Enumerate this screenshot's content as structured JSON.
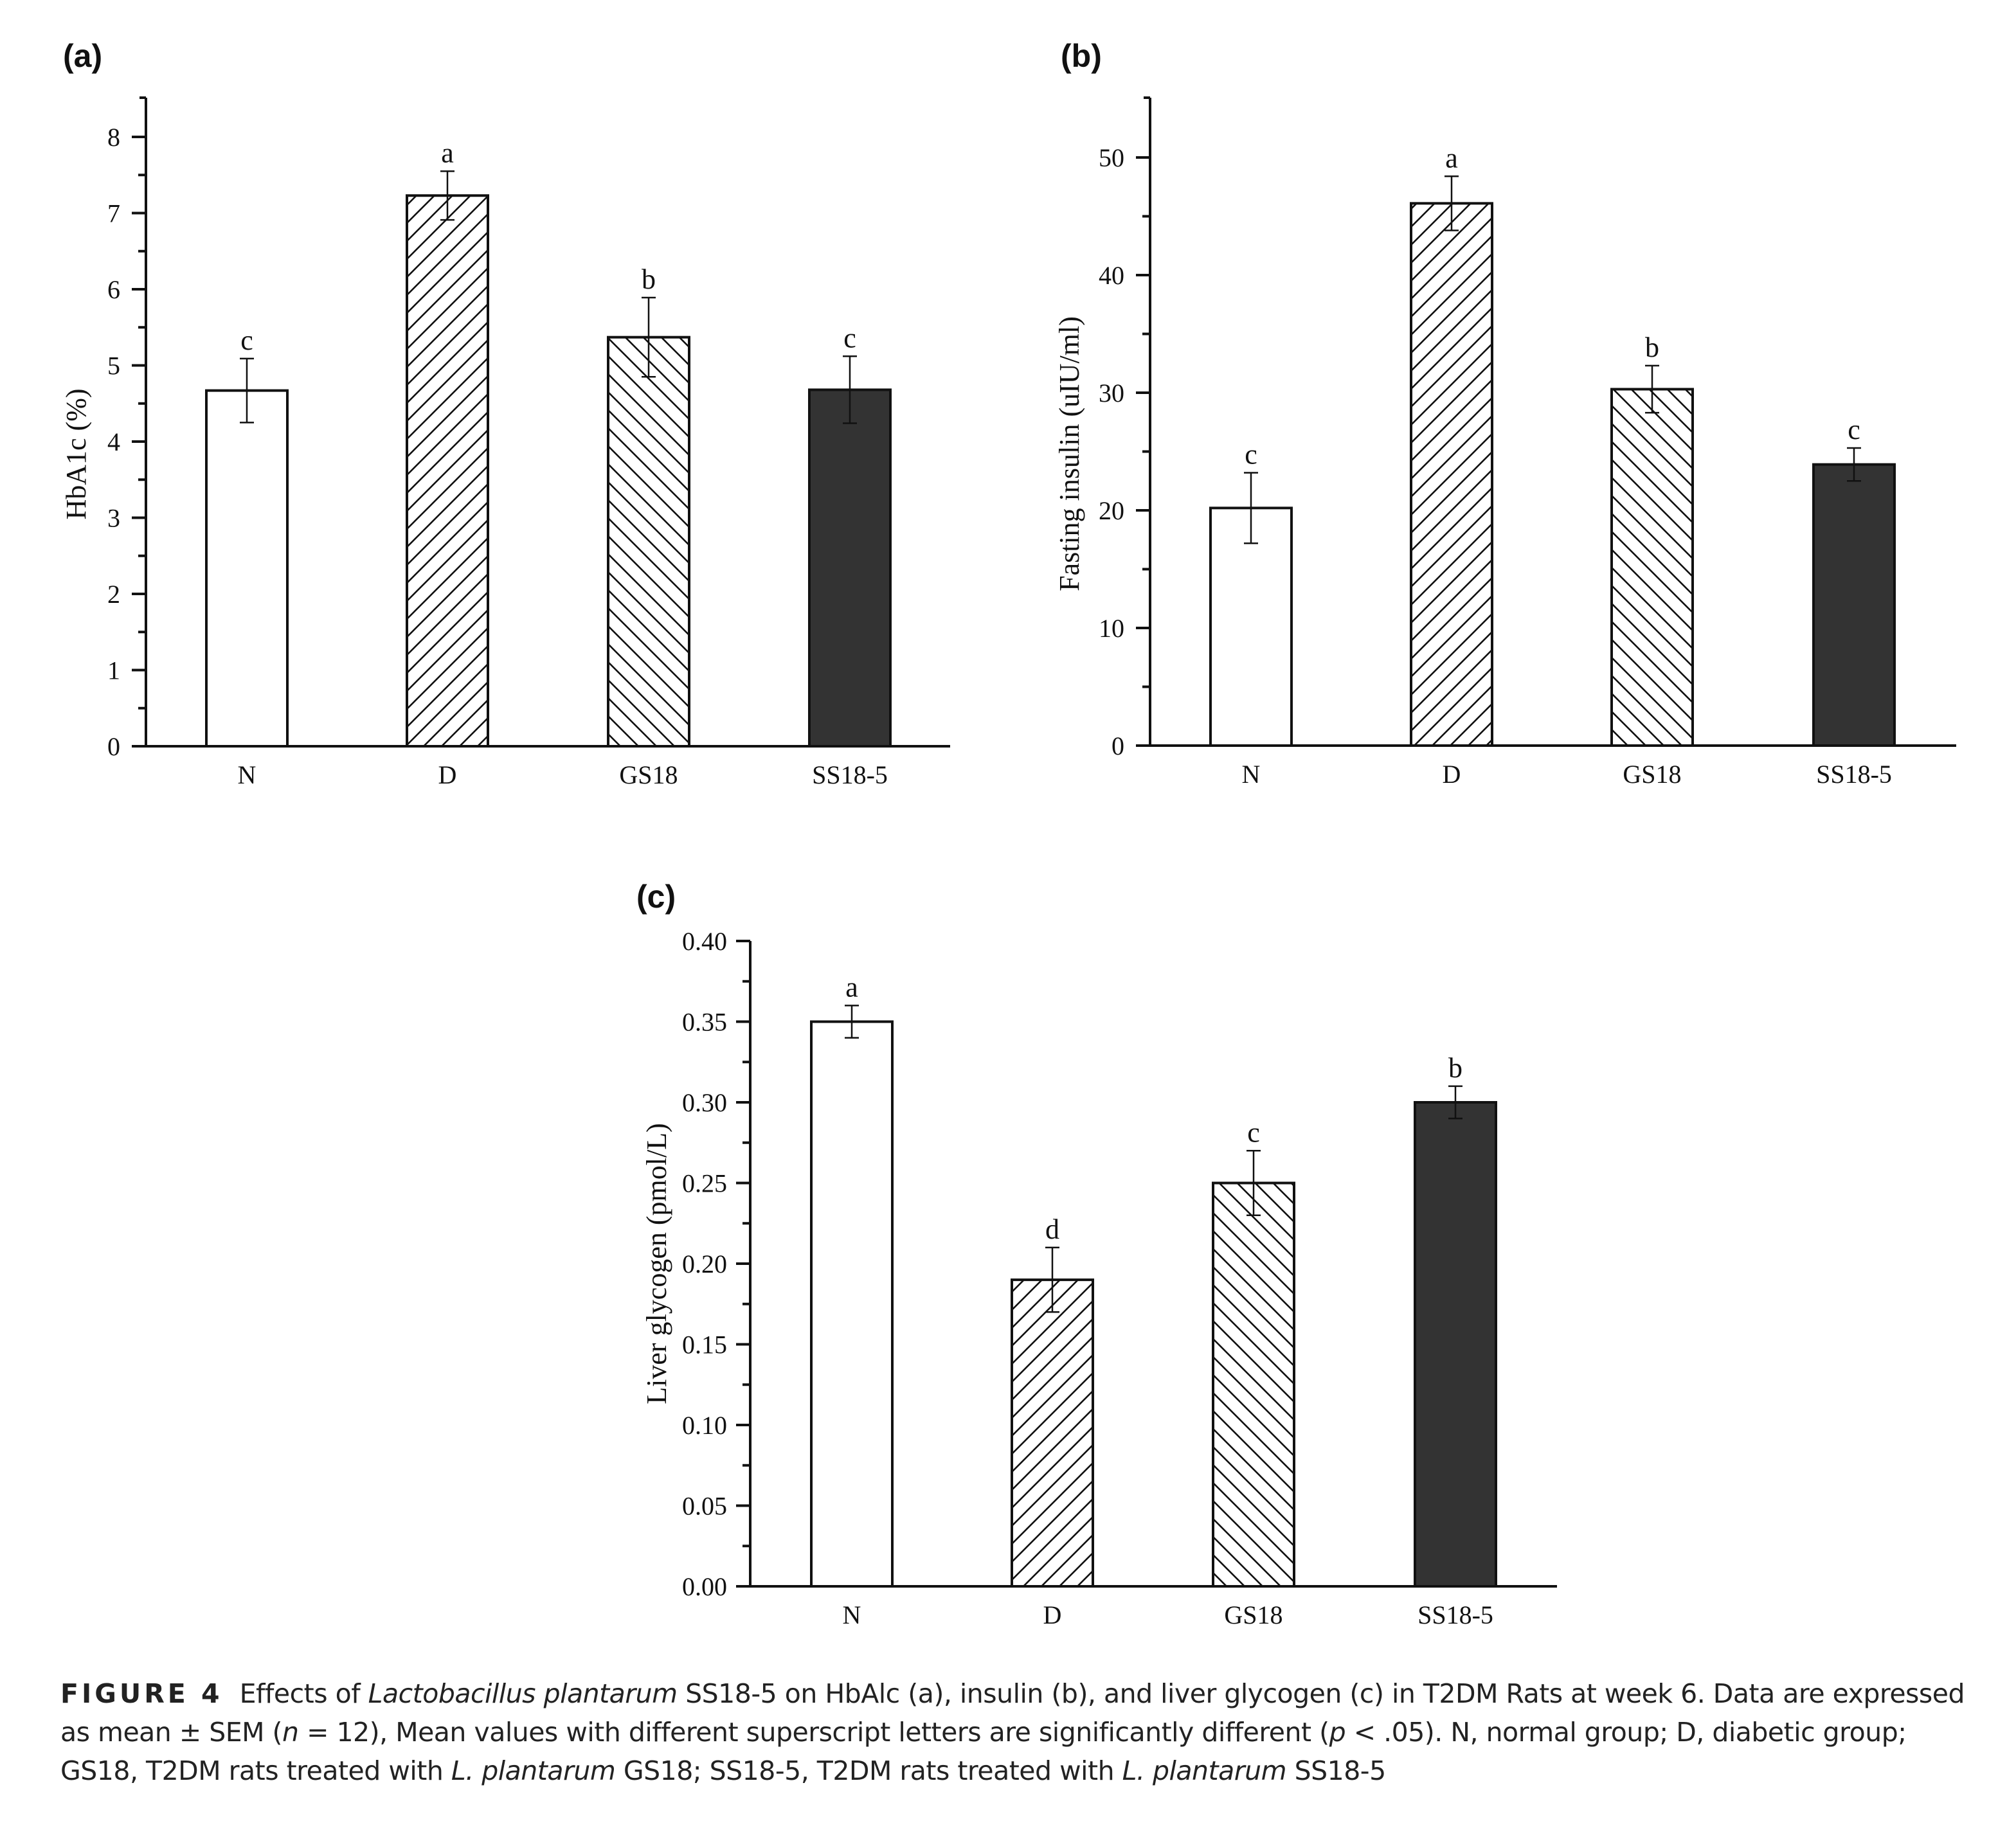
{
  "panels": [
    {
      "label": "(a)"
    },
    {
      "label": "(b)"
    },
    {
      "label": "(c)"
    }
  ],
  "caption": {
    "tag": "FIGURE 4",
    "parts": [
      {
        "text": "Effects of ",
        "italic": false
      },
      {
        "text": "Lactobacillus plantarum",
        "italic": true
      },
      {
        "text": " SS18-5 on HbAlc (a), insulin (b), and liver glycogen (c) in T2DM Rats at week 6. Data are expressed as mean ± SEM (",
        "italic": false
      },
      {
        "text": "n",
        "italic": true
      },
      {
        "text": " = 12), Mean values with different superscript letters are significantly different (",
        "italic": false
      },
      {
        "text": "p",
        "italic": true
      },
      {
        "text": " < .05). N, normal group; D, diabetic group; GS18, T2DM rats treated with ",
        "italic": false
      },
      {
        "text": "L. plantarum",
        "italic": true
      },
      {
        "text": " GS18; SS18-5, T2DM rats treated with ",
        "italic": false
      },
      {
        "text": "L. plantarum",
        "italic": true
      },
      {
        "text": " SS18-5",
        "italic": false
      }
    ]
  },
  "chart_data": [
    {
      "type": "bar",
      "panel": "(a)",
      "title": "",
      "xlabel": "",
      "ylabel": "HbA1c (%)",
      "categories": [
        "N",
        "D",
        "GS18",
        "SS18-5"
      ],
      "values": [
        4.67,
        7.23,
        5.37,
        4.68
      ],
      "errors": [
        0.42,
        0.32,
        0.52,
        0.44
      ],
      "significance": [
        "c",
        "a",
        "b",
        "c"
      ],
      "fills": [
        "white",
        "hatch-forward",
        "hatch-backward",
        "#333333"
      ],
      "ylim": [
        0,
        8.5
      ],
      "yticks": [
        0,
        1,
        2,
        3,
        4,
        5,
        6,
        7,
        8
      ],
      "ytick_labels": [
        "0",
        "1",
        "2",
        "3",
        "4",
        "5",
        "6",
        "7",
        "8"
      ],
      "grid": false,
      "legend": "none"
    },
    {
      "type": "bar",
      "panel": "(b)",
      "title": "",
      "xlabel": "",
      "ylabel": "Fasting insulin (uIU/ml)",
      "categories": [
        "N",
        "D",
        "GS18",
        "SS18-5"
      ],
      "values": [
        20.2,
        46.1,
        30.3,
        23.9
      ],
      "errors": [
        3.0,
        2.3,
        2.0,
        1.4
      ],
      "significance": [
        "c",
        "a",
        "b",
        "c"
      ],
      "fills": [
        "white",
        "hatch-forward",
        "hatch-backward",
        "#333333"
      ],
      "ylim": [
        0,
        55
      ],
      "yticks": [
        0,
        10,
        20,
        30,
        40,
        50
      ],
      "ytick_labels": [
        "0",
        "10",
        "20",
        "30",
        "40",
        "50"
      ],
      "grid": false,
      "legend": "none"
    },
    {
      "type": "bar",
      "panel": "(c)",
      "title": "",
      "xlabel": "",
      "ylabel": "Liver glycogen (pmol/L)",
      "categories": [
        "N",
        "D",
        "GS18",
        "SS18-5"
      ],
      "values": [
        0.35,
        0.19,
        0.25,
        0.3
      ],
      "errors": [
        0.01,
        0.02,
        0.02,
        0.01
      ],
      "significance": [
        "a",
        "d",
        "c",
        "b"
      ],
      "fills": [
        "white",
        "hatch-forward",
        "hatch-backward",
        "#333333"
      ],
      "ylim": [
        0,
        0.4
      ],
      "yticks": [
        0,
        0.05,
        0.1,
        0.15,
        0.2,
        0.25,
        0.3,
        0.35,
        0.4
      ],
      "ytick_labels": [
        "0.00",
        "0.05",
        "0.10",
        "0.15",
        "0.20",
        "0.25",
        "0.30",
        "0.35",
        "0.40"
      ],
      "grid": false,
      "legend": "none"
    }
  ]
}
